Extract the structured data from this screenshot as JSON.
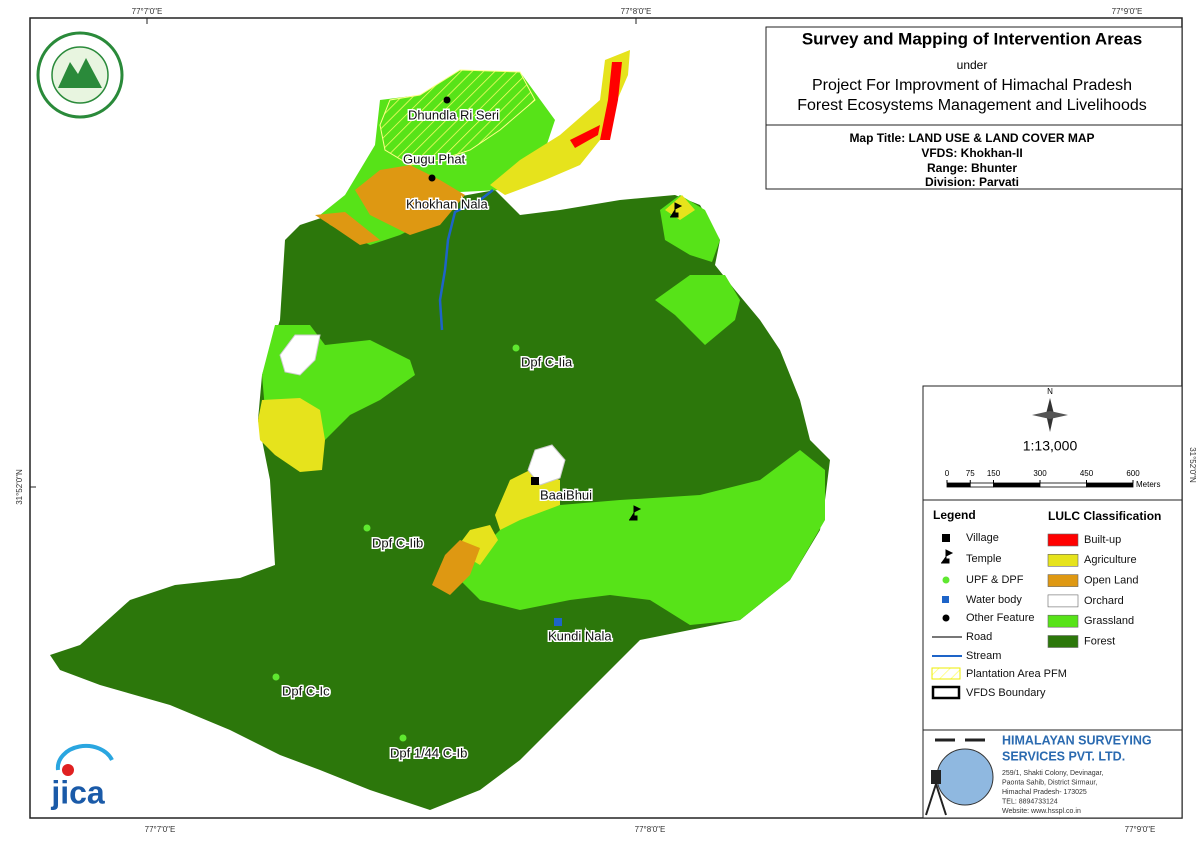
{
  "graticule": {
    "top": [
      "77°7'0\"E",
      "77°8'0\"E",
      "77°9'0\"E"
    ],
    "bottom": [
      "77°7'0\"E",
      "77°8'0\"E",
      "77°9'0\"E"
    ],
    "left": "31°52'0\"N",
    "right": "31°52'0\"N"
  },
  "title_block": {
    "title": "Survey and Mapping of Intervention Areas",
    "under": "under",
    "project_line1": "Project For Improvment of Himachal Pradesh",
    "project_line2": "Forest Ecosystems Management and Livelihoods",
    "map_title": "Map Title: LAND USE & LAND COVER MAP",
    "vfds": "VFDS: Khokhan-II",
    "range": "Range: Bhunter",
    "division": "Division: Parvati"
  },
  "north": "N",
  "scale": {
    "ratio": "1:13,000",
    "ticks": [
      0,
      75,
      150,
      300,
      450,
      600
    ],
    "unit": "Meters"
  },
  "legend": {
    "title": "Legend",
    "items": [
      "Village",
      "Temple",
      "UPF & DPF",
      "Water body",
      "Other Feature",
      "Road",
      "Stream",
      "Plantation Area PFM",
      "VFDS Boundary"
    ]
  },
  "lulc": {
    "title": "LULC Classification",
    "items": [
      {
        "label": "Built-up",
        "color": "#ff0000"
      },
      {
        "label": "Agriculture",
        "color": "#e6e31c"
      },
      {
        "label": "Open Land",
        "color": "#de9812"
      },
      {
        "label": "Orchard",
        "color": "#ffffff"
      },
      {
        "label": "Grassland",
        "color": "#57e318"
      },
      {
        "label": "Forest",
        "color": "#2c770b"
      }
    ]
  },
  "places": [
    "Dhundla Ri Seri",
    "Gugu Phat",
    "Khokhan Nala",
    "Dpf C-Iia",
    "BaaiBhui",
    "Dpf C-Iib",
    "Kundi Nala",
    "Dpf C-Ic",
    "Dpf 1/44 C-Ib"
  ],
  "jica": "jica",
  "company": {
    "name1": "HIMALAYAN SURVEYING",
    "name2": "SERVICES PVT. LTD.",
    "address": [
      "259/1, Shakti Colony, Devinagar,",
      "Paonta Sahib, District Sirmaur,",
      "Himachal Pradesh- 173025",
      "TEL: 8894733124",
      "Website: www.hsspl.co.in"
    ]
  }
}
